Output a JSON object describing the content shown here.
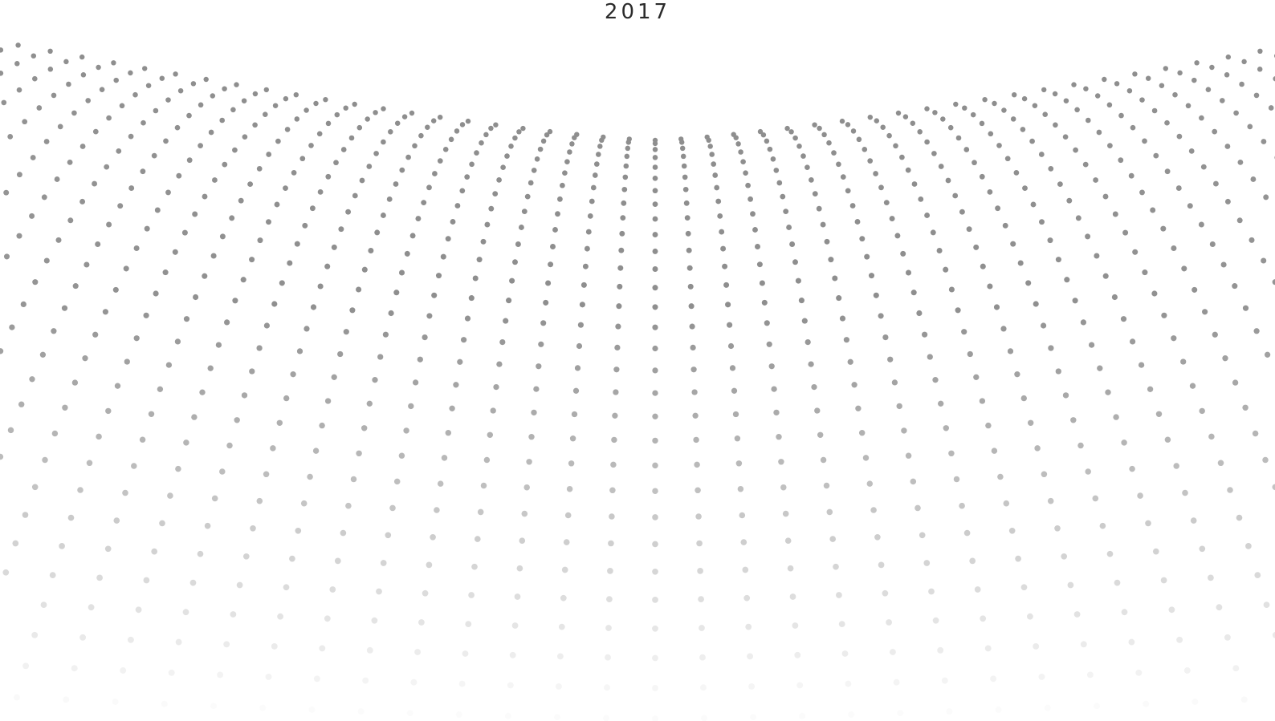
{
  "header": {
    "year": "2017"
  }
}
